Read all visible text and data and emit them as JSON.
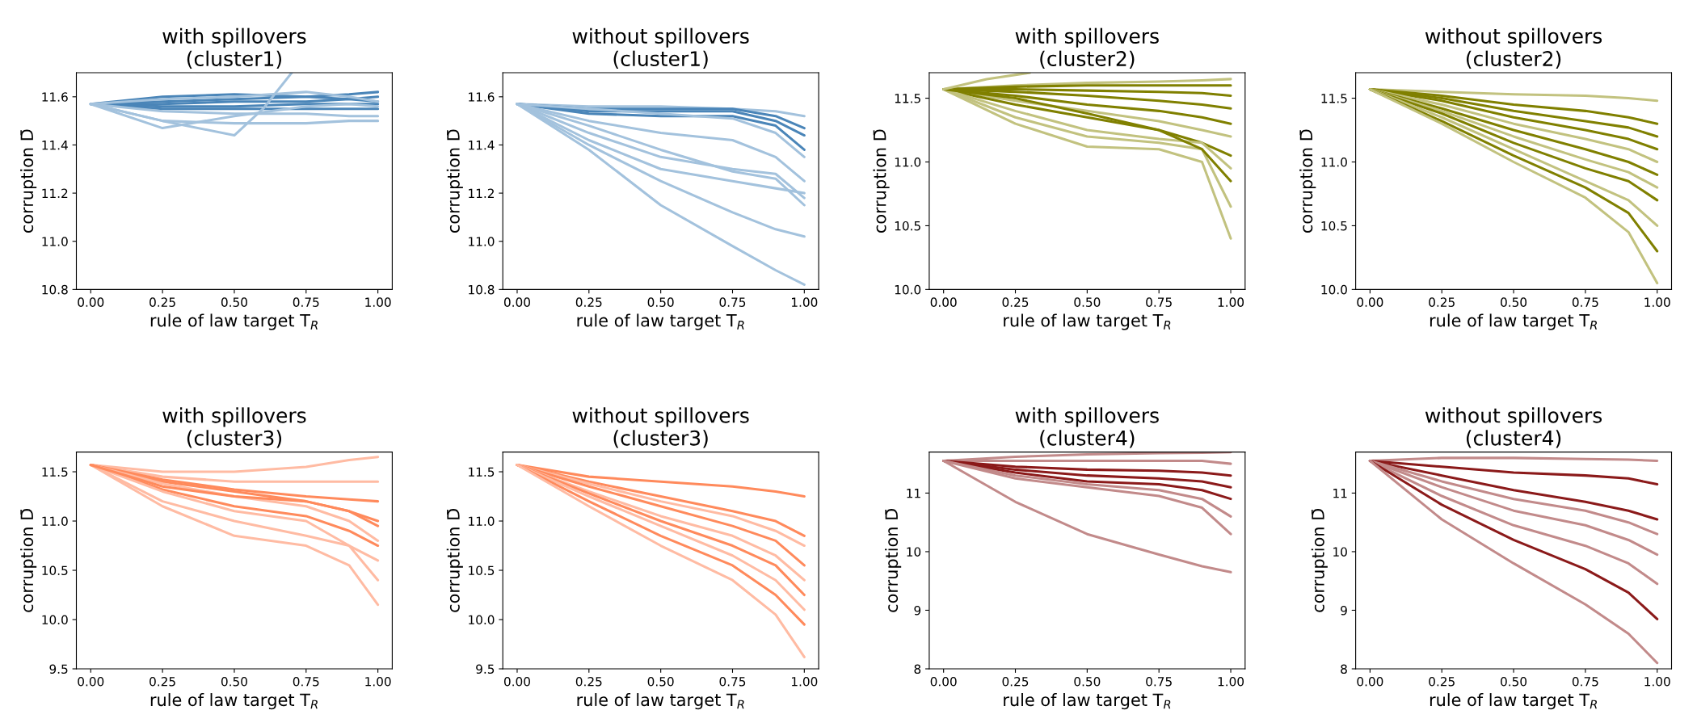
{
  "chart_data": [
    {
      "type": "line",
      "title": "with spillovers\n(cluster1)",
      "xlabel": "rule of law target T$_{R}$",
      "ylabel": "corruption D̄",
      "x": [
        0,
        0.25,
        0.5,
        0.75,
        0.9,
        1.0
      ],
      "xlim": [
        -0.05,
        1.05
      ],
      "xticks": [
        {
          "value": 0,
          "label": "0.00"
        },
        {
          "value": 0.25,
          "label": "0.25"
        },
        {
          "value": 0.5,
          "label": "0.50"
        },
        {
          "value": 0.75,
          "label": "0.75"
        },
        {
          "value": 1,
          "label": "1.00"
        }
      ],
      "ylim": [
        10.8,
        11.7
      ],
      "yticks": [
        {
          "value": 10.8,
          "label": "10.8"
        },
        {
          "value": 11.0,
          "label": "11.0"
        },
        {
          "value": 11.2,
          "label": "11.2"
        },
        {
          "value": 11.4,
          "label": "11.4"
        },
        {
          "value": 11.6,
          "label": "11.6"
        }
      ],
      "series": [
        {
          "color": "#4a85b8",
          "values": [
            11.57,
            11.58,
            11.59,
            11.6,
            11.61,
            11.62
          ]
        },
        {
          "color": "#4a85b8",
          "values": [
            11.57,
            11.57,
            11.58,
            11.58,
            11.59,
            11.6
          ]
        },
        {
          "color": "#4a85b8",
          "values": [
            11.57,
            11.56,
            11.56,
            11.57,
            11.57,
            11.57
          ]
        },
        {
          "color": "#4a85b8",
          "values": [
            11.57,
            11.55,
            11.55,
            11.55,
            11.55,
            11.55
          ]
        },
        {
          "color": "#a3c2dd",
          "values": [
            11.57,
            11.54,
            11.53,
            11.53,
            11.52,
            11.52
          ]
        },
        {
          "color": "#a3c2dd",
          "values": [
            11.57,
            11.5,
            11.49,
            11.49,
            11.5,
            11.5
          ]
        },
        {
          "color": "#4a85b8",
          "values": [
            11.57,
            11.6,
            11.61,
            11.6,
            11.59,
            11.58
          ]
        },
        {
          "color": "#a3c2dd",
          "values": [
            11.57,
            11.59,
            11.6,
            11.62,
            11.6,
            11.58
          ]
        },
        {
          "color": "#a3c2dd",
          "values": [
            11.57,
            11.47,
            11.52,
            11.56,
            11.57,
            11.56
          ]
        },
        {
          "color": "#a3c2dd",
          "x": [
            0,
            0.25,
            0.5,
            0.6,
            0.7
          ],
          "values": [
            11.57,
            11.5,
            11.44,
            11.55,
            11.7
          ]
        }
      ]
    },
    {
      "type": "line",
      "title": "without spillovers\n(cluster1)",
      "xlabel": "rule of law target T$_{R}$",
      "ylabel": "corruption D̄",
      "x": [
        0,
        0.25,
        0.5,
        0.75,
        0.9,
        1.0
      ],
      "xlim": [
        -0.05,
        1.05
      ],
      "xticks": [
        {
          "value": 0,
          "label": "0.00"
        },
        {
          "value": 0.25,
          "label": "0.25"
        },
        {
          "value": 0.5,
          "label": "0.50"
        },
        {
          "value": 0.75,
          "label": "0.75"
        },
        {
          "value": 1,
          "label": "1.00"
        }
      ],
      "ylim": [
        10.8,
        11.7
      ],
      "yticks": [
        {
          "value": 10.8,
          "label": "10.8"
        },
        {
          "value": 11.0,
          "label": "11.0"
        },
        {
          "value": 11.2,
          "label": "11.2"
        },
        {
          "value": 11.4,
          "label": "11.4"
        },
        {
          "value": 11.6,
          "label": "11.6"
        }
      ],
      "series": [
        {
          "color": "#a3c2dd",
          "values": [
            11.57,
            11.56,
            11.56,
            11.55,
            11.54,
            11.52
          ]
        },
        {
          "color": "#4a85b8",
          "values": [
            11.57,
            11.55,
            11.55,
            11.55,
            11.52,
            11.47
          ]
        },
        {
          "color": "#4a85b8",
          "values": [
            11.57,
            11.54,
            11.54,
            11.54,
            11.5,
            11.44
          ]
        },
        {
          "color": "#4a85b8",
          "values": [
            11.57,
            11.53,
            11.52,
            11.52,
            11.48,
            11.38
          ]
        },
        {
          "color": "#a3c2dd",
          "values": [
            11.57,
            11.55,
            11.53,
            11.51,
            11.45,
            11.35
          ]
        },
        {
          "color": "#a3c2dd",
          "values": [
            11.57,
            11.5,
            11.45,
            11.42,
            11.35,
            11.25
          ]
        },
        {
          "color": "#a3c2dd",
          "values": [
            11.57,
            11.45,
            11.35,
            11.3,
            11.28,
            11.18
          ]
        },
        {
          "color": "#a3c2dd",
          "values": [
            11.57,
            11.48,
            11.38,
            11.29,
            11.26,
            11.15
          ]
        },
        {
          "color": "#a3c2dd",
          "values": [
            11.57,
            11.42,
            11.3,
            11.25,
            11.22,
            11.2
          ]
        },
        {
          "color": "#a3c2dd",
          "values": [
            11.57,
            11.4,
            11.25,
            11.12,
            11.05,
            11.02
          ]
        },
        {
          "color": "#a3c2dd",
          "values": [
            11.57,
            11.38,
            11.15,
            10.98,
            10.88,
            10.82
          ]
        }
      ]
    },
    {
      "type": "line",
      "title": "with spillovers\n(cluster2)",
      "xlabel": "rule of law target T$_{R}$",
      "ylabel": "corruption D̄",
      "x": [
        0,
        0.25,
        0.5,
        0.75,
        0.9,
        1.0
      ],
      "xlim": [
        -0.05,
        1.05
      ],
      "xticks": [
        {
          "value": 0,
          "label": "0.00"
        },
        {
          "value": 0.25,
          "label": "0.25"
        },
        {
          "value": 0.5,
          "label": "0.50"
        },
        {
          "value": 0.75,
          "label": "0.75"
        },
        {
          "value": 1,
          "label": "1.00"
        }
      ],
      "ylim": [
        10.0,
        11.7
      ],
      "yticks": [
        {
          "value": 10.0,
          "label": "10.0"
        },
        {
          "value": 10.5,
          "label": "10.5"
        },
        {
          "value": 11.0,
          "label": "11.0"
        },
        {
          "value": 11.5,
          "label": "11.5"
        }
      ],
      "series": [
        {
          "color": "#c2c27f",
          "values": [
            11.57,
            11.6,
            11.62,
            11.63,
            11.64,
            11.65
          ]
        },
        {
          "color": "#808000",
          "values": [
            11.57,
            11.59,
            11.6,
            11.6,
            11.6,
            11.6
          ]
        },
        {
          "color": "#808000",
          "values": [
            11.57,
            11.57,
            11.56,
            11.55,
            11.54,
            11.52
          ]
        },
        {
          "color": "#808000",
          "values": [
            11.57,
            11.55,
            11.52,
            11.48,
            11.45,
            11.42
          ]
        },
        {
          "color": "#808000",
          "values": [
            11.57,
            11.52,
            11.45,
            11.4,
            11.35,
            11.3
          ]
        },
        {
          "color": "#c2c27f",
          "values": [
            11.57,
            11.48,
            11.4,
            11.32,
            11.25,
            11.2
          ]
        },
        {
          "color": "#808000",
          "values": [
            11.57,
            11.45,
            11.35,
            11.25,
            11.15,
            11.05
          ]
        },
        {
          "color": "#c2c27f",
          "values": [
            11.57,
            11.4,
            11.25,
            11.18,
            11.15,
            10.95
          ]
        },
        {
          "color": "#c2c27f",
          "values": [
            11.57,
            11.35,
            11.2,
            11.15,
            11.1,
            10.65
          ]
        },
        {
          "color": "#c2c27f",
          "values": [
            11.57,
            11.3,
            11.12,
            11.1,
            11.0,
            10.4
          ]
        },
        {
          "color": "#808000",
          "values": [
            11.57,
            11.5,
            11.38,
            11.25,
            11.1,
            10.85
          ]
        },
        {
          "color": "#c2c27f",
          "x": [
            0,
            0.15,
            0.3
          ],
          "values": [
            11.57,
            11.65,
            11.7
          ]
        }
      ]
    },
    {
      "type": "line",
      "title": "without spillovers\n(cluster2)",
      "xlabel": "rule of law target T$_{R}$",
      "ylabel": "corruption D̄",
      "x": [
        0,
        0.25,
        0.5,
        0.75,
        0.9,
        1.0
      ],
      "xlim": [
        -0.05,
        1.05
      ],
      "xticks": [
        {
          "value": 0,
          "label": "0.00"
        },
        {
          "value": 0.25,
          "label": "0.25"
        },
        {
          "value": 0.5,
          "label": "0.50"
        },
        {
          "value": 0.75,
          "label": "0.75"
        },
        {
          "value": 1,
          "label": "1.00"
        }
      ],
      "ylim": [
        10.0,
        11.7
      ],
      "yticks": [
        {
          "value": 10.0,
          "label": "10.0"
        },
        {
          "value": 10.5,
          "label": "10.5"
        },
        {
          "value": 11.0,
          "label": "11.0"
        },
        {
          "value": 11.5,
          "label": "11.5"
        }
      ],
      "series": [
        {
          "color": "#c2c27f",
          "values": [
            11.57,
            11.55,
            11.53,
            11.52,
            11.5,
            11.48
          ]
        },
        {
          "color": "#808000",
          "values": [
            11.57,
            11.52,
            11.45,
            11.4,
            11.35,
            11.3
          ]
        },
        {
          "color": "#808000",
          "values": [
            11.57,
            11.5,
            11.4,
            11.32,
            11.27,
            11.2
          ]
        },
        {
          "color": "#808000",
          "values": [
            11.57,
            11.48,
            11.35,
            11.25,
            11.18,
            11.1
          ]
        },
        {
          "color": "#c2c27f",
          "values": [
            11.57,
            11.45,
            11.3,
            11.18,
            11.1,
            11.0
          ]
        },
        {
          "color": "#808000",
          "values": [
            11.57,
            11.42,
            11.25,
            11.1,
            11.0,
            10.9
          ]
        },
        {
          "color": "#c2c27f",
          "values": [
            11.57,
            11.4,
            11.2,
            11.02,
            10.92,
            10.8
          ]
        },
        {
          "color": "#808000",
          "values": [
            11.57,
            11.38,
            11.15,
            10.95,
            10.85,
            10.7
          ]
        },
        {
          "color": "#c2c27f",
          "values": [
            11.57,
            11.35,
            11.1,
            10.85,
            10.7,
            10.5
          ]
        },
        {
          "color": "#808000",
          "values": [
            11.57,
            11.32,
            11.05,
            10.8,
            10.6,
            10.3
          ]
        },
        {
          "color": "#c2c27f",
          "values": [
            11.57,
            11.3,
            11.0,
            10.72,
            10.45,
            10.05
          ]
        }
      ]
    },
    {
      "type": "line",
      "title": "with spillovers\n(cluster3)",
      "xlabel": "rule of law target T$_{R}$",
      "ylabel": "corruption D̄",
      "x": [
        0,
        0.25,
        0.5,
        0.75,
        0.9,
        1.0
      ],
      "xlim": [
        -0.05,
        1.05
      ],
      "xticks": [
        {
          "value": 0,
          "label": "0.00"
        },
        {
          "value": 0.25,
          "label": "0.25"
        },
        {
          "value": 0.5,
          "label": "0.50"
        },
        {
          "value": 0.75,
          "label": "0.75"
        },
        {
          "value": 1,
          "label": "1.00"
        }
      ],
      "ylim": [
        9.5,
        11.7
      ],
      "yticks": [
        {
          "value": 9.5,
          "label": "9.5"
        },
        {
          "value": 10.0,
          "label": "10.0"
        },
        {
          "value": 10.5,
          "label": "10.5"
        },
        {
          "value": 11.0,
          "label": "11.0"
        },
        {
          "value": 11.5,
          "label": "11.5"
        }
      ],
      "series": [
        {
          "color": "#ffbba3",
          "values": [
            11.57,
            11.5,
            11.5,
            11.55,
            11.62,
            11.65
          ]
        },
        {
          "color": "#ffbba3",
          "values": [
            11.57,
            11.45,
            11.4,
            11.4,
            11.4,
            11.4
          ]
        },
        {
          "color": "#ff8a5c",
          "values": [
            11.57,
            11.42,
            11.32,
            11.25,
            11.22,
            11.2
          ]
        },
        {
          "color": "#ff8a5c",
          "values": [
            11.57,
            11.4,
            11.3,
            11.2,
            11.1,
            11.0
          ]
        },
        {
          "color": "#ffbba3",
          "values": [
            11.57,
            11.38,
            11.25,
            11.15,
            11.0,
            10.8
          ]
        },
        {
          "color": "#ff8a5c",
          "values": [
            11.57,
            11.32,
            11.15,
            11.05,
            10.9,
            10.75
          ]
        },
        {
          "color": "#ffbba3",
          "values": [
            11.57,
            11.2,
            11.0,
            10.85,
            10.75,
            10.6
          ]
        },
        {
          "color": "#ffbba3",
          "values": [
            11.57,
            11.3,
            11.1,
            11.0,
            10.75,
            10.4
          ]
        },
        {
          "color": "#ffbba3",
          "values": [
            11.57,
            11.15,
            10.85,
            10.75,
            10.55,
            10.15
          ]
        },
        {
          "color": "#ff8a5c",
          "values": [
            11.57,
            11.35,
            11.25,
            11.2,
            11.1,
            10.95
          ]
        }
      ]
    },
    {
      "type": "line",
      "title": "without spillovers\n(cluster3)",
      "xlabel": "rule of law target T$_{R}$",
      "ylabel": "corruption D̄",
      "x": [
        0,
        0.25,
        0.5,
        0.75,
        0.9,
        1.0
      ],
      "xlim": [
        -0.05,
        1.05
      ],
      "xticks": [
        {
          "value": 0,
          "label": "0.00"
        },
        {
          "value": 0.25,
          "label": "0.25"
        },
        {
          "value": 0.5,
          "label": "0.50"
        },
        {
          "value": 0.75,
          "label": "0.75"
        },
        {
          "value": 1,
          "label": "1.00"
        }
      ],
      "ylim": [
        9.5,
        11.7
      ],
      "yticks": [
        {
          "value": 9.5,
          "label": "9.5"
        },
        {
          "value": 10.0,
          "label": "10.0"
        },
        {
          "value": 10.5,
          "label": "10.5"
        },
        {
          "value": 11.0,
          "label": "11.0"
        },
        {
          "value": 11.5,
          "label": "11.5"
        }
      ],
      "series": [
        {
          "color": "#ff8a5c",
          "values": [
            11.57,
            11.45,
            11.4,
            11.35,
            11.3,
            11.25
          ]
        },
        {
          "color": "#ff8a5c",
          "values": [
            11.57,
            11.4,
            11.25,
            11.1,
            11.0,
            10.85
          ]
        },
        {
          "color": "#ffbba3",
          "values": [
            11.57,
            11.38,
            11.2,
            11.05,
            10.9,
            10.75
          ]
        },
        {
          "color": "#ff8a5c",
          "values": [
            11.57,
            11.35,
            11.15,
            10.95,
            10.8,
            10.55
          ]
        },
        {
          "color": "#ffbba3",
          "values": [
            11.57,
            11.3,
            11.05,
            10.85,
            10.65,
            10.4
          ]
        },
        {
          "color": "#ff8a5c",
          "values": [
            11.57,
            11.28,
            11.0,
            10.75,
            10.55,
            10.25
          ]
        },
        {
          "color": "#ffbba3",
          "values": [
            11.57,
            11.25,
            10.95,
            10.65,
            10.4,
            10.1
          ]
        },
        {
          "color": "#ff8a5c",
          "values": [
            11.57,
            11.2,
            10.85,
            10.55,
            10.25,
            9.95
          ]
        },
        {
          "color": "#ffbba3",
          "values": [
            11.57,
            11.15,
            10.75,
            10.4,
            10.05,
            9.62
          ]
        }
      ]
    },
    {
      "type": "line",
      "title": "with spillovers\n(cluster4)",
      "xlabel": "rule of law target T$_{R}$",
      "ylabel": "corruption D̄",
      "x": [
        0,
        0.25,
        0.5,
        0.75,
        0.9,
        1.0
      ],
      "xlim": [
        -0.05,
        1.05
      ],
      "xticks": [
        {
          "value": 0,
          "label": "0.00"
        },
        {
          "value": 0.25,
          "label": "0.25"
        },
        {
          "value": 0.5,
          "label": "0.50"
        },
        {
          "value": 0.75,
          "label": "0.75"
        },
        {
          "value": 1,
          "label": "1.00"
        }
      ],
      "ylim": [
        8,
        11.7
      ],
      "yticks": [
        8,
        9,
        10,
        11
      ],
      "series": [
        {
          "color": "#c28a8a",
          "values": [
            11.55,
            11.62,
            11.66,
            11.68,
            11.69,
            11.7
          ]
        },
        {
          "color": "#c28a8a",
          "values": [
            11.55,
            11.55,
            11.55,
            11.55,
            11.55,
            11.5
          ]
        },
        {
          "color": "#8b1a1a",
          "values": [
            11.55,
            11.45,
            11.4,
            11.38,
            11.35,
            11.3
          ]
        },
        {
          "color": "#8b1a1a",
          "values": [
            11.55,
            11.4,
            11.3,
            11.25,
            11.2,
            11.1
          ]
        },
        {
          "color": "#8b1a1a",
          "values": [
            11.55,
            11.35,
            11.2,
            11.15,
            11.05,
            10.9
          ]
        },
        {
          "color": "#c28a8a",
          "values": [
            11.55,
            11.3,
            11.15,
            11.05,
            10.9,
            10.6
          ]
        },
        {
          "color": "#c28a8a",
          "values": [
            11.55,
            11.25,
            11.1,
            10.95,
            10.75,
            10.3
          ]
        },
        {
          "color": "#c28a8a",
          "values": [
            11.55,
            10.85,
            10.3,
            9.95,
            9.75,
            9.65
          ]
        }
      ]
    },
    {
      "type": "line",
      "title": "without spillovers\n(cluster4)",
      "xlabel": "rule of law target T$_{R}$",
      "ylabel": "corruption D̄",
      "x": [
        0,
        0.25,
        0.5,
        0.75,
        0.9,
        1.0
      ],
      "xlim": [
        -0.05,
        1.05
      ],
      "xticks": [
        {
          "value": 0,
          "label": "0.00"
        },
        {
          "value": 0.25,
          "label": "0.25"
        },
        {
          "value": 0.5,
          "label": "0.50"
        },
        {
          "value": 0.75,
          "label": "0.75"
        },
        {
          "value": 1,
          "label": "1.00"
        }
      ],
      "ylim": [
        8,
        11.7
      ],
      "yticks": [
        8,
        9,
        10,
        11
      ],
      "series": [
        {
          "color": "#c28a8a",
          "values": [
            11.55,
            11.6,
            11.6,
            11.58,
            11.57,
            11.55
          ]
        },
        {
          "color": "#8b1a1a",
          "values": [
            11.55,
            11.45,
            11.35,
            11.3,
            11.25,
            11.15
          ]
        },
        {
          "color": "#8b1a1a",
          "values": [
            11.55,
            11.3,
            11.05,
            10.85,
            10.7,
            10.55
          ]
        },
        {
          "color": "#c28a8a",
          "values": [
            11.55,
            11.2,
            10.9,
            10.7,
            10.5,
            10.3
          ]
        },
        {
          "color": "#c28a8a",
          "values": [
            11.55,
            11.1,
            10.7,
            10.45,
            10.2,
            9.95
          ]
        },
        {
          "color": "#c28a8a",
          "values": [
            11.55,
            10.95,
            10.45,
            10.1,
            9.8,
            9.45
          ]
        },
        {
          "color": "#8b1a1a",
          "values": [
            11.55,
            10.8,
            10.2,
            9.7,
            9.3,
            8.85
          ]
        },
        {
          "color": "#c28a8a",
          "values": [
            11.55,
            10.55,
            9.8,
            9.1,
            8.6,
            8.1
          ]
        }
      ]
    }
  ]
}
